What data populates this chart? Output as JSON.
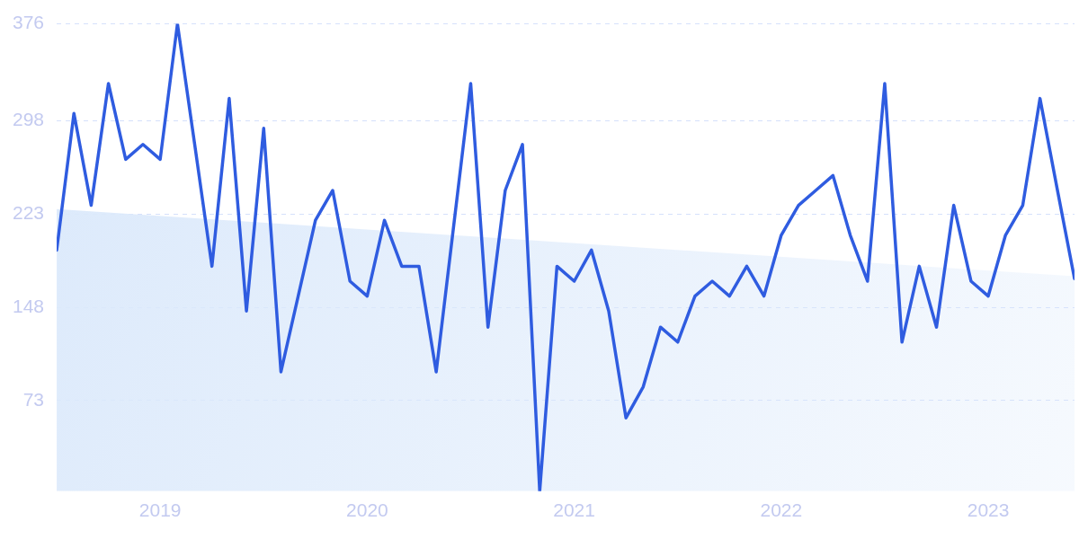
{
  "chart_data": {
    "type": "line",
    "x": [
      "2018-07",
      "2018-08",
      "2018-09",
      "2018-10",
      "2018-11",
      "2018-12",
      "2019-01",
      "2019-02",
      "2019-03",
      "2019-04",
      "2019-05",
      "2019-06",
      "2019-07",
      "2019-08",
      "2019-09",
      "2019-10",
      "2019-11",
      "2019-12",
      "2020-01",
      "2020-02",
      "2020-03",
      "2020-04",
      "2020-05",
      "2020-06",
      "2020-07",
      "2020-08",
      "2020-09",
      "2020-10",
      "2020-11",
      "2020-12",
      "2021-01",
      "2021-02",
      "2021-03",
      "2021-04",
      "2021-05",
      "2021-06",
      "2021-07",
      "2021-08",
      "2021-09",
      "2021-10",
      "2021-11",
      "2021-12",
      "2022-01",
      "2022-02",
      "2022-03",
      "2022-04",
      "2022-05",
      "2022-06",
      "2022-07",
      "2022-08",
      "2022-09",
      "2022-10",
      "2022-11",
      "2022-12",
      "2023-01",
      "2023-02",
      "2023-03",
      "2023-04",
      "2023-05",
      "2023-06"
    ],
    "series": [
      {
        "type": "area",
        "color": "#dbe9fb",
        "x": [
          "2018-07",
          "2023-06"
        ],
        "values": [
          227,
          173
        ]
      },
      {
        "color": "#2f5ce0",
        "values": [
          194,
          304,
          230,
          328,
          267,
          279,
          267,
          376,
          279,
          181,
          316,
          145,
          292,
          96,
          157,
          218,
          242,
          169,
          157,
          218,
          181,
          181,
          96,
          212,
          328,
          132,
          242,
          279,
          0,
          181,
          169,
          194,
          145,
          59,
          84,
          132,
          120,
          157,
          169,
          157,
          181,
          157,
          206,
          230,
          242,
          254,
          206,
          169,
          328,
          120,
          181,
          132,
          230,
          169,
          157,
          206,
          230,
          316,
          243,
          171
        ]
      }
    ],
    "xlim": [
      "2018-07",
      "2023-06"
    ],
    "xticks": [
      "2019",
      "2020",
      "2021",
      "2022",
      "2023"
    ],
    "ylim": [
      0,
      376
    ],
    "yticks": [
      73,
      148,
      223,
      298,
      376
    ],
    "grid": "y",
    "legend": false,
    "marker": "none",
    "line_style": "solid"
  }
}
